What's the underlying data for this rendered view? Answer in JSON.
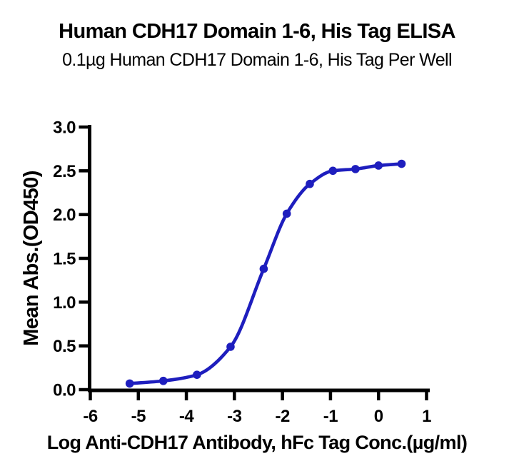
{
  "header": {
    "title": "Human CDH17 Domain 1-6, His Tag ELISA",
    "subtitle": "0.1µg Human CDH17 Domain 1-6, His Tag Per Well"
  },
  "chart_data": {
    "type": "line",
    "title": "Human CDH17 Domain 1-6, His Tag ELISA",
    "subtitle": "0.1µg Human CDH17 Domain 1-6, His Tag Per Well",
    "xlabel": "Log Anti-CDH17 Antibody, hFc Tag Conc.(µg/ml)",
    "ylabel": "Mean Abs.(OD450)",
    "x": [
      -5.18,
      -4.48,
      -3.78,
      -3.08,
      -2.39,
      -1.91,
      -1.43,
      -0.95,
      -0.48,
      0.0,
      0.48
    ],
    "y": [
      0.07,
      0.1,
      0.17,
      0.49,
      1.38,
      2.01,
      2.35,
      2.5,
      2.52,
      2.56,
      2.58
    ],
    "series_name": "Anti-CDH17 Antibody, hFc Tag",
    "curve": "4PL sigmoid through points",
    "xticks": [
      -6,
      -5,
      -4,
      -3,
      -2,
      -1,
      0,
      1
    ],
    "xtick_labels": [
      "-6",
      "-5",
      "-4",
      "-3",
      "-2",
      "-1",
      "0",
      "1"
    ],
    "yticks": [
      0.0,
      0.5,
      1.0,
      1.5,
      2.0,
      2.5,
      3.0
    ],
    "ytick_labels": [
      "0.0",
      "0.5",
      "1.0",
      "1.5",
      "2.0",
      "2.5",
      "3.0"
    ],
    "xlim": [
      -6,
      1
    ],
    "ylim": [
      0.0,
      3.0
    ],
    "grid": false,
    "legend": null,
    "line_color": "#1e1ebe",
    "marker_color": "#1e1ebe",
    "axis_color": "#000000",
    "background_color": "#ffffff"
  }
}
